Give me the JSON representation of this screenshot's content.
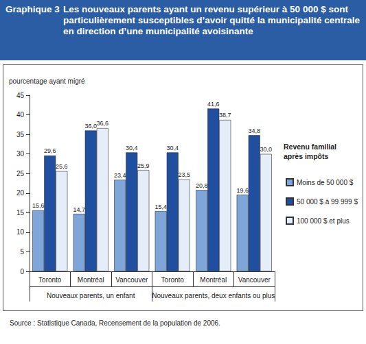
{
  "chart_data": {
    "type": "bar",
    "figure_label": "Graphique 3",
    "title": "Les nouveaux parents ayant un revenu supérieur à 50 000 $ sont particulièrement susceptibles d’avoir quitté la municipalité centrale en direction d’une municipalité avoisinante",
    "y_label": "pourcentage ayant migré",
    "categories": [
      "Toronto",
      "Montréal",
      "Vancouver",
      "Toronto",
      "Montréal",
      "Vancouver"
    ],
    "groups": [
      "Nouveaux parents, un enfant",
      "Nouveaux parents, deux enfants ou plus"
    ],
    "legend_title": "Revenu familial après impôts",
    "series": [
      {
        "name": "Moins de 50 000 $",
        "color": "#7fa6d8",
        "values": [
          15.6,
          14.7,
          23.4,
          15.4,
          20.8,
          19.6
        ],
        "value_labels": [
          "15,6",
          "14,7",
          "23,4",
          "15,4",
          "20,8",
          "19,6"
        ]
      },
      {
        "name": "50 000 $ à 99 999 $",
        "color": "#1f4f9e",
        "values": [
          29.6,
          36.0,
          30.4,
          30.4,
          41.6,
          34.8
        ],
        "value_labels": [
          "29,6",
          "36,0",
          "30,4",
          "30,4",
          "41,6",
          "34,8"
        ]
      },
      {
        "name": "100 000 $ et plus",
        "color": "#e4edf8",
        "values": [
          25.6,
          36.6,
          25.9,
          23.5,
          38.7,
          30.0
        ],
        "value_labels": [
          "25,6",
          "36,6",
          "25,9",
          "23,5",
          "38,7",
          "30,0"
        ]
      }
    ],
    "ylim": [
      0,
      45
    ],
    "yticks": [
      0,
      5,
      10,
      15,
      20,
      25,
      30,
      35,
      40,
      45
    ],
    "grid": false,
    "legend": "right",
    "data_labels": true,
    "source": "Source : Statistique Canada, Recensement de la population de 2006."
  }
}
